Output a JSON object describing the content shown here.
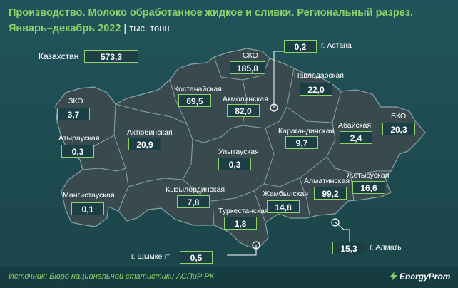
{
  "title_line1": "Производство. Молоко обработанное жидкое и сливки. Региональный разрез.",
  "title_line2": "Январь–декабрь 2022",
  "unit": "тыс. тонн",
  "total": {
    "label": "Казахстан",
    "value": "573,3"
  },
  "regions": [
    {
      "name": "ЗКО",
      "value": "3,7"
    },
    {
      "name": "Атырауская",
      "value": "0,3"
    },
    {
      "name": "Мангистауская",
      "value": "0,1"
    },
    {
      "name": "Актюбинская",
      "value": "20,9"
    },
    {
      "name": "Костанайская",
      "value": "69,5"
    },
    {
      "name": "СКО",
      "value": "185,8"
    },
    {
      "name": "Акмолинская",
      "value": "82,0"
    },
    {
      "name": "г. Астана",
      "value": "0,2"
    },
    {
      "name": "Павлодарская",
      "value": "22,0"
    },
    {
      "name": "Карагандинская",
      "value": "9,7"
    },
    {
      "name": "Абайская",
      "value": "2,4"
    },
    {
      "name": "ВКО",
      "value": "20,3"
    },
    {
      "name": "Улытауская",
      "value": "0,3"
    },
    {
      "name": "Кызылординская",
      "value": "7,8"
    },
    {
      "name": "Туркестанская",
      "value": "1,8"
    },
    {
      "name": "г. Шымкент",
      "value": "0,5"
    },
    {
      "name": "Жамбылская",
      "value": "14,8"
    },
    {
      "name": "Алматинская",
      "value": "99,2"
    },
    {
      "name": "Жетысуская",
      "value": "16,6"
    },
    {
      "name": "г. Алматы",
      "value": "15,3"
    }
  ],
  "source": "Источник: Бюро национальной статистики АСПиР РК",
  "logo": "EnergyProm",
  "colors": {
    "accent": "#8fd16a",
    "map_fill": "#394a4f",
    "border": "#8aa3a6"
  }
}
